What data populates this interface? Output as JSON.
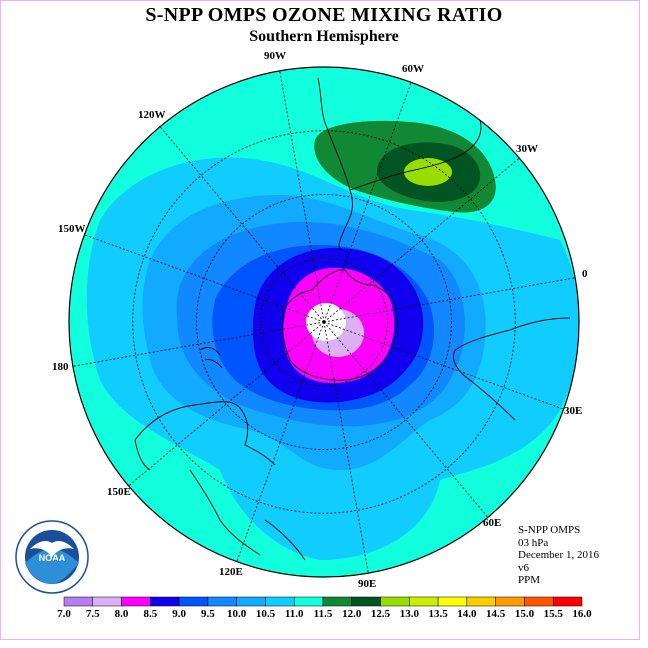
{
  "title": "S-NPP OMPS OZONE MIXING RATIO",
  "subtitle": "Southern Hemisphere",
  "longitude_labels": [
    "90W",
    "60W",
    "30W",
    "0",
    "30E",
    "60E",
    "90E",
    "120E",
    "150E",
    "180",
    "150W",
    "120W"
  ],
  "info": {
    "instrument": "S-NPP OMPS",
    "pressure": "03 hPa",
    "date": "December 1, 2016",
    "version": "v6",
    "units": "PPM"
  },
  "colorbar": {
    "labels": [
      "7.0",
      "7.5",
      "8.0",
      "8.5",
      "9.0",
      "9.5",
      "10.0",
      "10.5",
      "11.0",
      "11.5",
      "12.0",
      "12.5",
      "13.0",
      "13.5",
      "14.0",
      "14.5",
      "15.0",
      "15.5",
      "16.0"
    ],
    "colors": [
      "#b77cf0",
      "#dcb0f2",
      "#ff00ff",
      "#1100ee",
      "#0055ff",
      "#1188ff",
      "#11aaff",
      "#11ccff",
      "#11ffdd",
      "#118833",
      "#005522",
      "#99dd00",
      "#ccee00",
      "#ffff00",
      "#ffcc00",
      "#ff9900",
      "#ff5500",
      "#ff0000",
      "#885533"
    ]
  },
  "map_colors": {
    "bg": "#11ffdd",
    "c95": "#1188ff",
    "c100": "#11aaff",
    "c105": "#11ccff",
    "c90": "#0055ff",
    "c85": "#1100ee",
    "c80": "#ff00ff",
    "c75": "#dcb0f2",
    "c115": "#118833",
    "c120": "#005522",
    "c125": "#99dd00"
  },
  "logo_text": "NOAA"
}
